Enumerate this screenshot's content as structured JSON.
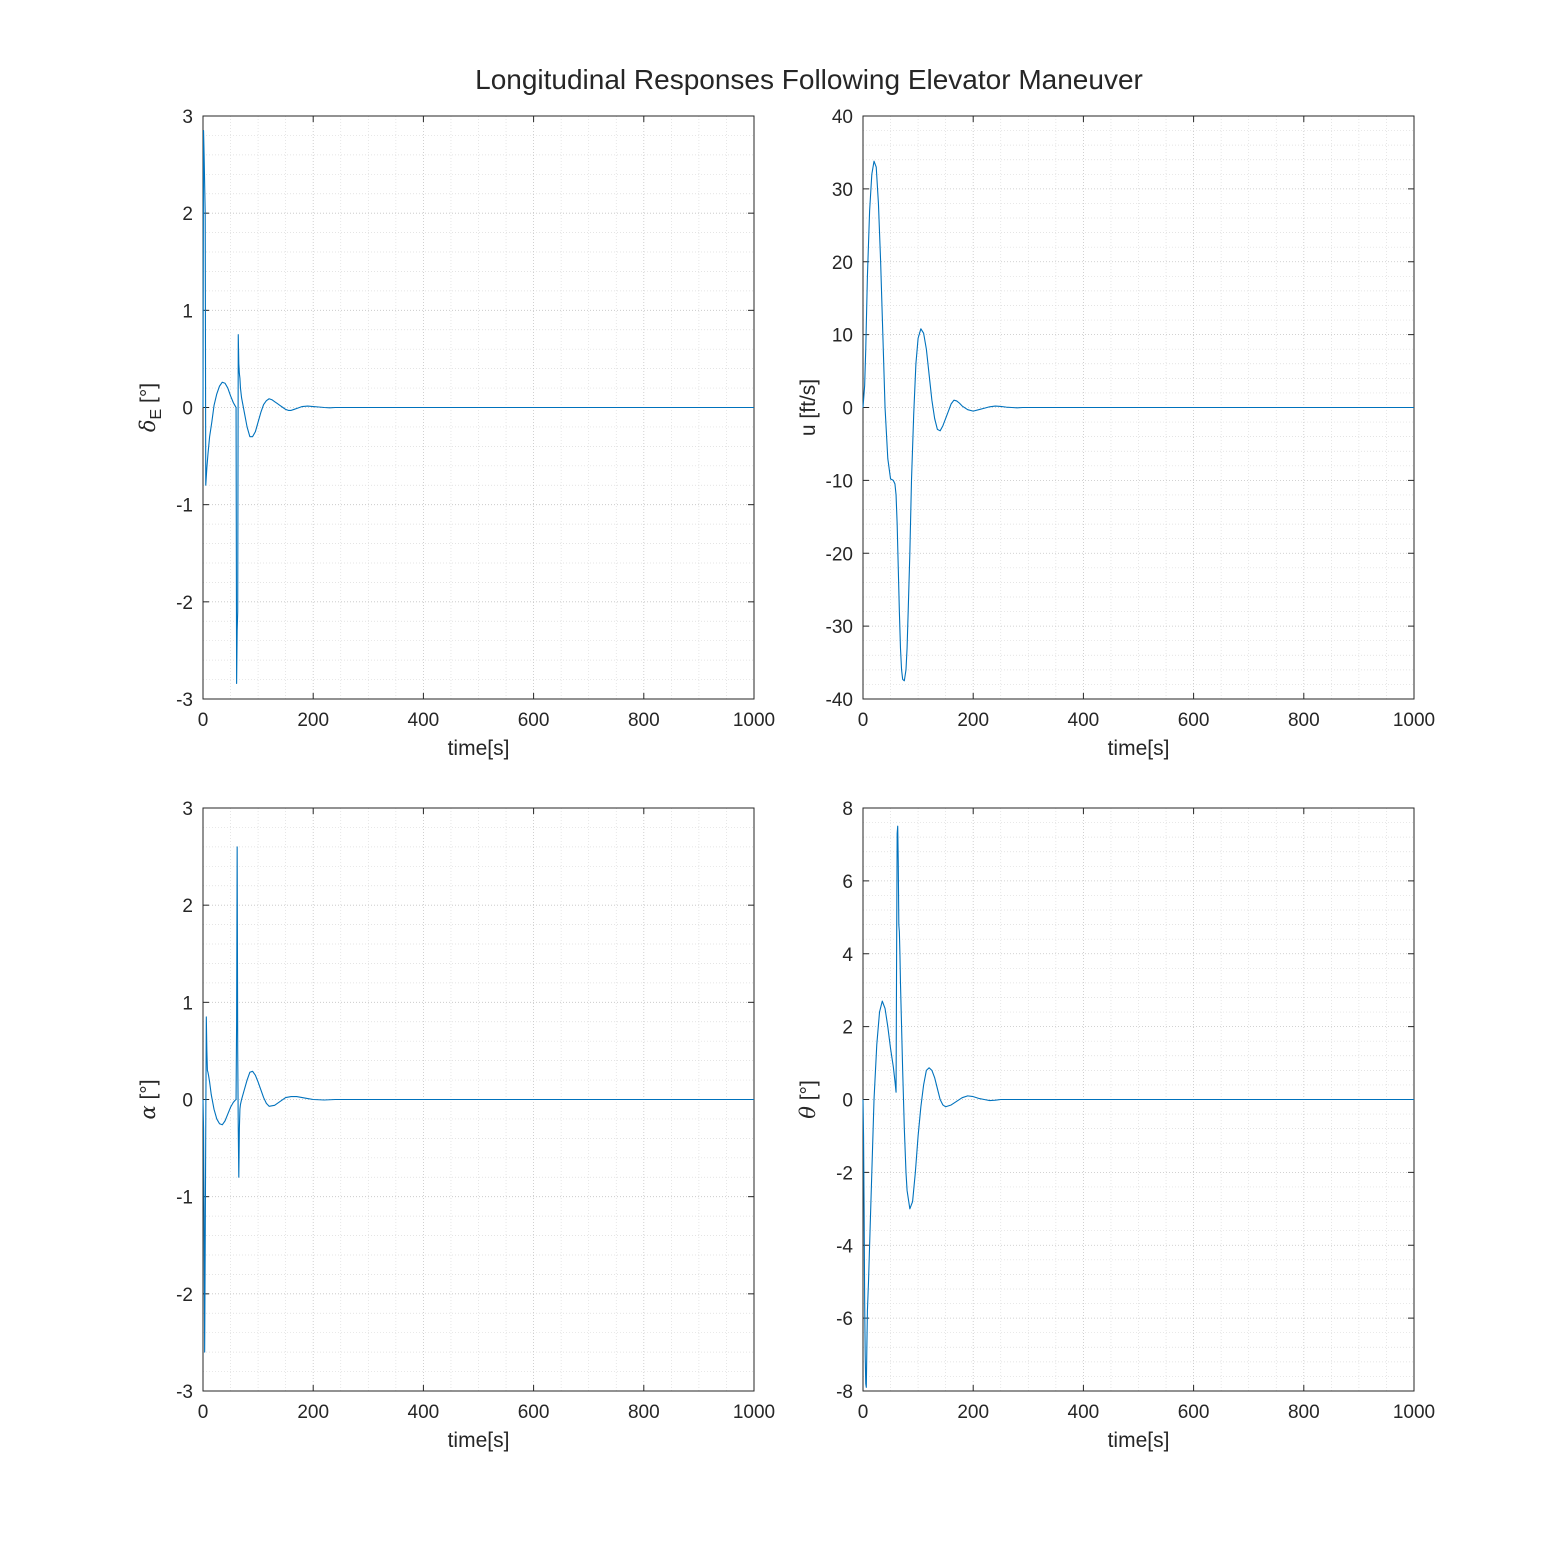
{
  "figure": {
    "title": "Longitudinal Responses Following Elevator Maneuver"
  },
  "chart_data": [
    {
      "type": "line",
      "id": "delta_e",
      "xlabel": "time[s]",
      "ylabel": {
        "symbol": "δ",
        "subscript": "E",
        "unit": "[°]"
      },
      "xlim": [
        0,
        1000
      ],
      "ylim": [
        -3,
        3
      ],
      "xticks": [
        0,
        200,
        400,
        600,
        800,
        1000
      ],
      "yticks": [
        -3,
        -2,
        -1,
        0,
        1,
        2,
        3
      ],
      "grid": true,
      "minor_grid": true,
      "color": "#0072BD",
      "series": [
        {
          "x": [
            0,
            1,
            2,
            4,
            5,
            7,
            9,
            12,
            16,
            20,
            25,
            30,
            35,
            40,
            45,
            50,
            55,
            58,
            60,
            61,
            62,
            63,
            64,
            65,
            66,
            67,
            68,
            70,
            75,
            80,
            85,
            90,
            95,
            100,
            105,
            110,
            115,
            120,
            125,
            130,
            135,
            140,
            145,
            150,
            155,
            160,
            165,
            170,
            175,
            180,
            190,
            200,
            210,
            220,
            230,
            240,
            250,
            270,
            300,
            400,
            600,
            800,
            1000
          ],
          "y": [
            0,
            2.85,
            2.6,
            2.0,
            -0.8,
            -0.62,
            -0.48,
            -0.3,
            -0.15,
            0.02,
            0.14,
            0.22,
            0.26,
            0.25,
            0.2,
            0.12,
            0.05,
            0.02,
            0.0,
            -2.84,
            -2.3,
            -2.1,
            0.75,
            0.45,
            0.35,
            0.3,
            0.2,
            0.1,
            -0.05,
            -0.2,
            -0.3,
            -0.3,
            -0.25,
            -0.15,
            -0.05,
            0.03,
            0.07,
            0.09,
            0.08,
            0.06,
            0.04,
            0.02,
            0.0,
            -0.02,
            -0.03,
            -0.03,
            -0.02,
            -0.01,
            0.0,
            0.01,
            0.015,
            0.01,
            0.005,
            0.0,
            -0.003,
            0.0,
            0.0,
            0.0,
            0.0,
            0.0,
            0.0,
            0.0,
            0.0
          ]
        }
      ]
    },
    {
      "type": "line",
      "id": "u",
      "xlabel": "time[s]",
      "ylabel": {
        "text": "u [ft/s]"
      },
      "xlim": [
        0,
        1000
      ],
      "ylim": [
        -40,
        40
      ],
      "xticks": [
        0,
        200,
        400,
        600,
        800,
        1000
      ],
      "yticks": [
        -40,
        -30,
        -20,
        -10,
        0,
        10,
        20,
        30,
        40
      ],
      "grid": true,
      "minor_grid": true,
      "color": "#0072BD",
      "series": [
        {
          "x": [
            0,
            3,
            5,
            8,
            12,
            16,
            20,
            24,
            28,
            32,
            36,
            40,
            45,
            50,
            55,
            58,
            60,
            62,
            64,
            66,
            68,
            70,
            72,
            75,
            78,
            80,
            82,
            85,
            88,
            92,
            96,
            100,
            105,
            110,
            115,
            120,
            125,
            130,
            135,
            140,
            145,
            150,
            155,
            160,
            165,
            170,
            175,
            180,
            190,
            200,
            210,
            220,
            230,
            240,
            250,
            260,
            270,
            280,
            290,
            300,
            320,
            350,
            400,
            600,
            800,
            1000
          ],
          "y": [
            0,
            3,
            8,
            18,
            27,
            32,
            33.8,
            33,
            28,
            20,
            10,
            0,
            -7,
            -9.8,
            -10,
            -10.5,
            -12,
            -16,
            -22,
            -28,
            -33,
            -36,
            -37.3,
            -37.5,
            -36,
            -33,
            -28,
            -20,
            -10,
            -1,
            6,
            9.5,
            10.8,
            10.2,
            8,
            4.5,
            1,
            -1.5,
            -3,
            -3.2,
            -2.5,
            -1.5,
            -0.5,
            0.5,
            1.0,
            0.9,
            0.6,
            0.2,
            -0.3,
            -0.5,
            -0.3,
            -0.1,
            0.1,
            0.2,
            0.15,
            0.05,
            0.0,
            -0.05,
            0.0,
            0.0,
            0.0,
            0.0,
            0.0,
            0.0,
            0.0,
            0.0
          ]
        }
      ]
    },
    {
      "type": "line",
      "id": "alpha",
      "xlabel": "time[s]",
      "ylabel": {
        "symbol": "α",
        "unit": "[°]"
      },
      "xlim": [
        0,
        1000
      ],
      "ylim": [
        -3,
        3
      ],
      "xticks": [
        0,
        200,
        400,
        600,
        800,
        1000
      ],
      "yticks": [
        -3,
        -2,
        -1,
        0,
        1,
        2,
        3
      ],
      "grid": true,
      "minor_grid": true,
      "color": "#0072BD",
      "series": [
        {
          "x": [
            0,
            1,
            2,
            3,
            4,
            5,
            6,
            7,
            8,
            9,
            10,
            12,
            15,
            20,
            25,
            30,
            35,
            40,
            45,
            50,
            55,
            58,
            60,
            61,
            62,
            63,
            64,
            65,
            66,
            67,
            68,
            70,
            75,
            80,
            85,
            90,
            95,
            100,
            105,
            110,
            115,
            120,
            130,
            140,
            150,
            160,
            170,
            180,
            190,
            200,
            220,
            240,
            260,
            300,
            400,
            600,
            800,
            1000
          ],
          "y": [
            0,
            -0.3,
            -1.2,
            -2.6,
            -1.5,
            -0.3,
            0.85,
            0.5,
            0.3,
            0.28,
            0.25,
            0.18,
            0.05,
            -0.1,
            -0.2,
            -0.25,
            -0.26,
            -0.22,
            -0.15,
            -0.08,
            -0.03,
            -0.01,
            0.0,
            0.8,
            2.6,
            0.5,
            -0.3,
            -0.8,
            -0.3,
            -0.1,
            -0.05,
            0.0,
            0.1,
            0.2,
            0.28,
            0.29,
            0.25,
            0.18,
            0.1,
            0.02,
            -0.04,
            -0.07,
            -0.06,
            -0.02,
            0.02,
            0.03,
            0.03,
            0.02,
            0.01,
            0.0,
            -0.005,
            0.0,
            0.0,
            0.0,
            0.0,
            0.0,
            0.0,
            0.0
          ]
        }
      ]
    },
    {
      "type": "line",
      "id": "theta",
      "xlabel": "time[s]",
      "ylabel": {
        "symbol": "θ",
        "unit": "[°]"
      },
      "xlim": [
        0,
        1000
      ],
      "ylim": [
        -8,
        8
      ],
      "xticks": [
        0,
        200,
        400,
        600,
        800,
        1000
      ],
      "yticks": [
        -8,
        -6,
        -4,
        -2,
        0,
        2,
        4,
        6,
        8
      ],
      "grid": true,
      "minor_grid": true,
      "color": "#0072BD",
      "series": [
        {
          "x": [
            0,
            1,
            2,
            3,
            4,
            5,
            6,
            7,
            8,
            10,
            13,
            16,
            20,
            25,
            30,
            35,
            40,
            45,
            50,
            55,
            58,
            60,
            61,
            62,
            63,
            64,
            65,
            66,
            67,
            68,
            70,
            72,
            75,
            78,
            80,
            85,
            90,
            95,
            100,
            105,
            110,
            115,
            120,
            125,
            130,
            135,
            140,
            145,
            150,
            160,
            170,
            180,
            190,
            200,
            210,
            220,
            230,
            240,
            250,
            270,
            300,
            400,
            600,
            800,
            1000
          ],
          "y": [
            0,
            -1,
            -3,
            -5.5,
            -7,
            -7.8,
            -7.9,
            -6.8,
            -5.8,
            -5.0,
            -3.5,
            -2.0,
            0.0,
            1.5,
            2.4,
            2.7,
            2.5,
            2.0,
            1.4,
            0.9,
            0.5,
            0.2,
            4.0,
            7.3,
            7.5,
            6.5,
            4.8,
            4.6,
            4.0,
            3.2,
            2.0,
            0.8,
            -0.8,
            -2.0,
            -2.5,
            -3.0,
            -2.8,
            -2.0,
            -1.0,
            -0.2,
            0.4,
            0.8,
            0.87,
            0.8,
            0.6,
            0.3,
            0.0,
            -0.15,
            -0.2,
            -0.15,
            -0.05,
            0.05,
            0.1,
            0.08,
            0.03,
            0.0,
            -0.03,
            -0.02,
            0.0,
            0.0,
            0.0,
            0.0,
            0.0,
            0.0,
            0.0
          ]
        }
      ]
    }
  ]
}
